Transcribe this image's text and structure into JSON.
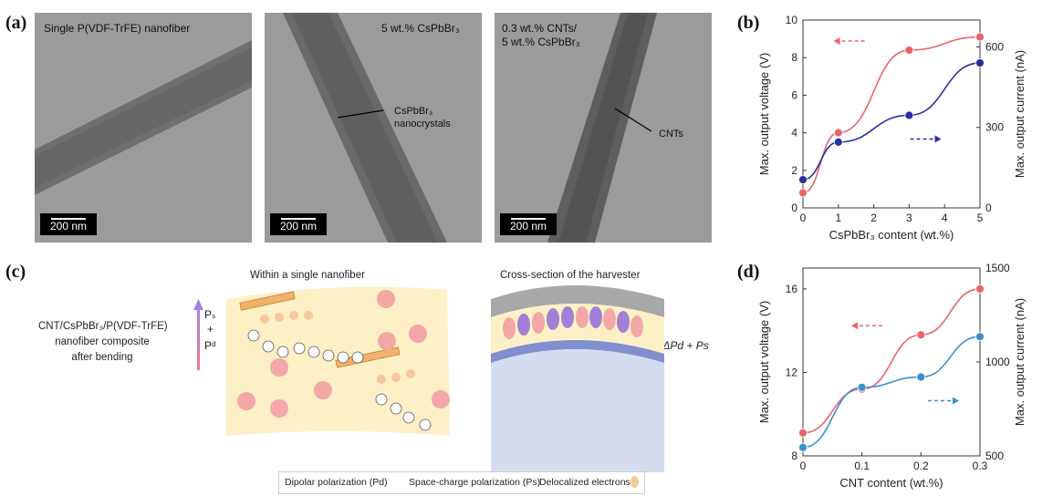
{
  "panels": {
    "a": "(a)",
    "b": "(b)",
    "c": "(c)",
    "d": "(d)"
  },
  "tem_images": [
    {
      "caption": "Single P(VDF-TrFE) nanofiber",
      "scale_bar": "200 nm"
    },
    {
      "caption": "5 wt.% CsPbBr₃",
      "scale_bar": "200 nm",
      "annotation": "CsPbBr₃\nnanocrystals"
    },
    {
      "caption": "0.3 wt.% CNTs/\n5 wt.% CsPbBr₃",
      "scale_bar": "200 nm",
      "annotation": "CNTs"
    }
  ],
  "schematic": {
    "left_label": "CNT/CsPbBr₃/P(VDF-TrFE)\nnanofiber composite\nafter bending",
    "ps_label": "Pₛ",
    "plus": "+",
    "pd_label": "Pᵈ",
    "within_title": "Within a single nanofiber",
    "cross_title": "Cross-section of the harvester",
    "pd_text": "P⁤d",
    "right_eq": "Pd + ΔPd + Ps",
    "legend": [
      "Dipolar polarization (Pd)",
      "Space-charge polarization (Ps)",
      "Delocalized electrons"
    ]
  },
  "chart_data": [
    {
      "type": "line",
      "panel": "b",
      "xlabel": "CsPbBr₃ content (wt.%)",
      "ylabel": "Max. output voltage (V)",
      "y2label": "Max. output current (nA)",
      "x": [
        0,
        1,
        3,
        5
      ],
      "xlim": [
        0,
        5
      ],
      "xticks": [
        0,
        1,
        2,
        3,
        4,
        5
      ],
      "ylim": [
        0,
        10
      ],
      "yticks": [
        0,
        2,
        4,
        6,
        8,
        10
      ],
      "y2lim": [
        0,
        700
      ],
      "y2ticks": [
        0,
        300,
        600
      ],
      "series": [
        {
          "axis": "left",
          "color": "#e8646b",
          "values": [
            0.8,
            4.0,
            8.4,
            9.1
          ]
        },
        {
          "axis": "right",
          "color": "#2b2f9e",
          "values": [
            105,
            245,
            345,
            540
          ]
        }
      ]
    },
    {
      "type": "line",
      "panel": "d",
      "xlabel": "CNT content (wt.%)",
      "ylabel": "Max. output voltage (V)",
      "y2label": "Max. output current (nA)",
      "x": [
        0,
        0.1,
        0.2,
        0.3
      ],
      "xlim": [
        0,
        0.3
      ],
      "xticks": [
        0,
        0.1,
        0.2,
        0.3
      ],
      "xticklabels": [
        "0",
        "0.1",
        "0.2",
        "0.3"
      ],
      "ylim": [
        8,
        17
      ],
      "yticks": [
        8,
        12,
        16
      ],
      "y2lim": [
        500,
        1500
      ],
      "y2ticks": [
        500,
        1000,
        1500
      ],
      "series": [
        {
          "axis": "left",
          "color": "#e8646b",
          "values": [
            9.1,
            11.2,
            13.8,
            16.0
          ]
        },
        {
          "axis": "right",
          "color": "#3b8fd0",
          "values": [
            545,
            865,
            920,
            1135
          ]
        }
      ]
    }
  ]
}
